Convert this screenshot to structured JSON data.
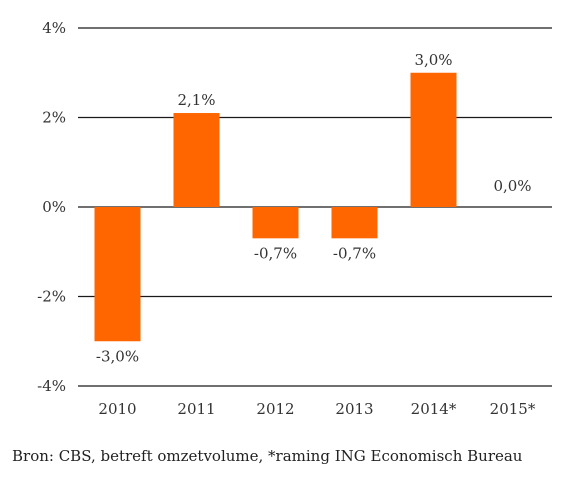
{
  "chart_data": {
    "type": "bar",
    "categories": [
      "2010",
      "2011",
      "2012",
      "2013",
      "2014*",
      "2015*"
    ],
    "values": [
      -3.0,
      2.1,
      -0.7,
      -0.7,
      3.0,
      0.0
    ],
    "value_labels": [
      "-3,0%",
      "2,1%",
      "-0,7%",
      "-0,7%",
      "3,0%",
      "0,0%"
    ],
    "yticks": [
      4,
      2,
      0,
      -2,
      -4
    ],
    "ytick_labels": [
      "4%",
      "2%",
      "0%",
      "-2%",
      "-4%"
    ],
    "ylim": [
      -4,
      4
    ],
    "grid": true,
    "bar_color": "#ff6600",
    "title": "",
    "xlabel": "",
    "ylabel": ""
  },
  "source_note": "Bron: CBS, betreft omzetvolume, *raming ING Economisch Bureau"
}
